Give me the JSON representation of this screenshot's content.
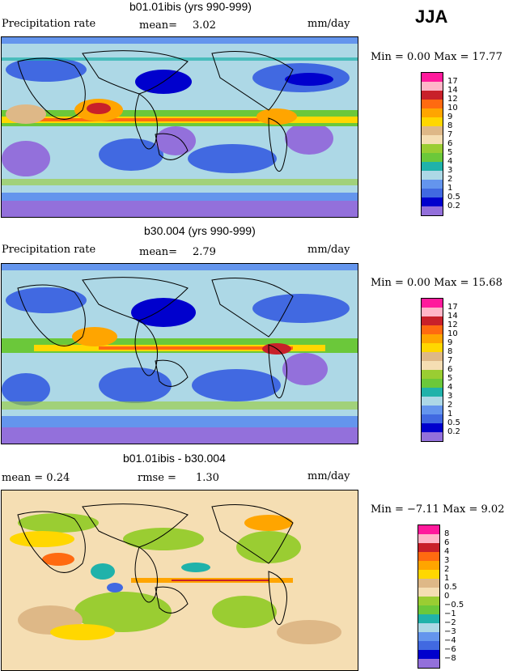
{
  "season": "JJA",
  "panels": [
    {
      "title": "b01.01ibis (yrs 990-999)",
      "left_label": "Precipitation rate",
      "stat_label": "mean=",
      "stat_value": "3.02",
      "units": "mm/day",
      "minmax": "Min =    0.00  Max =   17.77",
      "legend_ticks": [
        "17",
        "14",
        "12",
        "10",
        "9",
        "8",
        "7",
        "6",
        "5",
        "4",
        "3",
        "2",
        "1",
        "0.5",
        "0.2"
      ]
    },
    {
      "title": "b30.004 (yrs 990-999)",
      "left_label": "Precipitation rate",
      "stat_label": "mean=",
      "stat_value": "2.79",
      "units": "mm/day",
      "minmax": "Min =    0.00  Max =   15.68",
      "legend_ticks": [
        "17",
        "14",
        "12",
        "10",
        "9",
        "8",
        "7",
        "6",
        "5",
        "4",
        "3",
        "2",
        "1",
        "0.5",
        "0.2"
      ]
    },
    {
      "title": "b01.01ibis - b30.004",
      "left_label": "mean =     0.24",
      "stat_label": "rmse =",
      "stat_value": "1.30",
      "units": "mm/day",
      "minmax": "Min =  −7.11  Max =    9.02",
      "legend_ticks": [
        "8",
        "6",
        "4",
        "3",
        "2",
        "1",
        "0.5",
        "0",
        "−0.5",
        "−1",
        "−2",
        "−3",
        "−4",
        "−6",
        "−8"
      ]
    }
  ],
  "colors": {
    "abs_scale": [
      "#ff1a9c",
      "#ffb6c8",
      "#c8202a",
      "#ff6a10",
      "#ffa500",
      "#ffd700",
      "#deb887",
      "#f5deb3",
      "#9acd32",
      "#6bc83a",
      "#20b2aa",
      "#add8e6",
      "#6495ed",
      "#4169e1",
      "#0000cd",
      "#9370db"
    ],
    "diff_scale": [
      "#ff1a9c",
      "#ffb6c8",
      "#c8202a",
      "#ff6a10",
      "#ffa500",
      "#ffd700",
      "#deb887",
      "#f5deb3",
      "#9acd32",
      "#6bc83a",
      "#20b2aa",
      "#add8e6",
      "#6495ed",
      "#4169e1",
      "#0000cd",
      "#9370db"
    ]
  },
  "chart_data": [
    {
      "type": "heatmap",
      "title": "b01.01ibis (yrs 990-999)",
      "variable": "Precipitation rate",
      "units": "mm/day",
      "mean": 3.02,
      "min": 0.0,
      "max": 17.77,
      "contour_levels": [
        0.2,
        0.5,
        1,
        2,
        3,
        4,
        5,
        6,
        7,
        8,
        9,
        10,
        12,
        14,
        17
      ]
    },
    {
      "type": "heatmap",
      "title": "b30.004 (yrs 990-999)",
      "variable": "Precipitation rate",
      "units": "mm/day",
      "mean": 2.79,
      "min": 0.0,
      "max": 15.68,
      "contour_levels": [
        0.2,
        0.5,
        1,
        2,
        3,
        4,
        5,
        6,
        7,
        8,
        9,
        10,
        12,
        14,
        17
      ]
    },
    {
      "type": "heatmap",
      "title": "b01.01ibis - b30.004",
      "units": "mm/day",
      "mean": 0.24,
      "rmse": 1.3,
      "min": -7.11,
      "max": 9.02,
      "contour_levels": [
        -8,
        -6,
        -4,
        -3,
        -2,
        -1,
        -0.5,
        0,
        0.5,
        1,
        2,
        3,
        4,
        6,
        8
      ]
    }
  ]
}
